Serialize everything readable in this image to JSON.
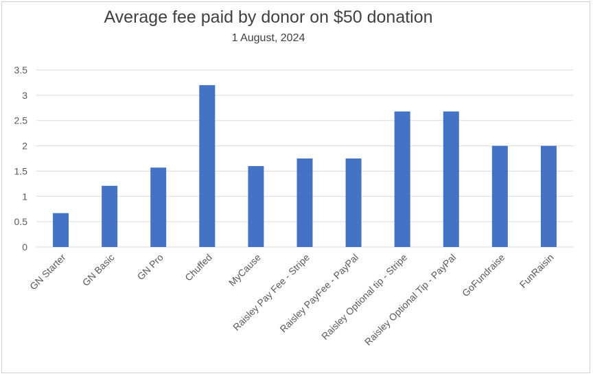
{
  "chart_data": {
    "type": "bar",
    "title": "Average fee paid by donor on $50 donation",
    "subtitle": "1 August, 2024",
    "categories": [
      "GN Starter",
      "GN Basic",
      "GN Pro",
      "Chuffed",
      "MyCause",
      "Raisley Pay Fee - Stripe",
      "Raisley PayFee - PayPal",
      "Raisley Optional tip - Stripe",
      "Raisley Optional Tip - PayPal",
      "GoFundraise",
      "FunRaisin"
    ],
    "values": [
      0.67,
      1.21,
      1.57,
      3.2,
      1.6,
      1.75,
      1.75,
      2.68,
      2.68,
      2.0,
      2.0
    ],
    "ylim": [
      0,
      3.5
    ],
    "yticks": [
      "0",
      "0.5",
      "1",
      "1.5",
      "2",
      "2.5",
      "3",
      "3.5"
    ],
    "grid": true,
    "legend": "none",
    "bar_color": "#4472c4",
    "grid_color": "#d9d9d9"
  }
}
